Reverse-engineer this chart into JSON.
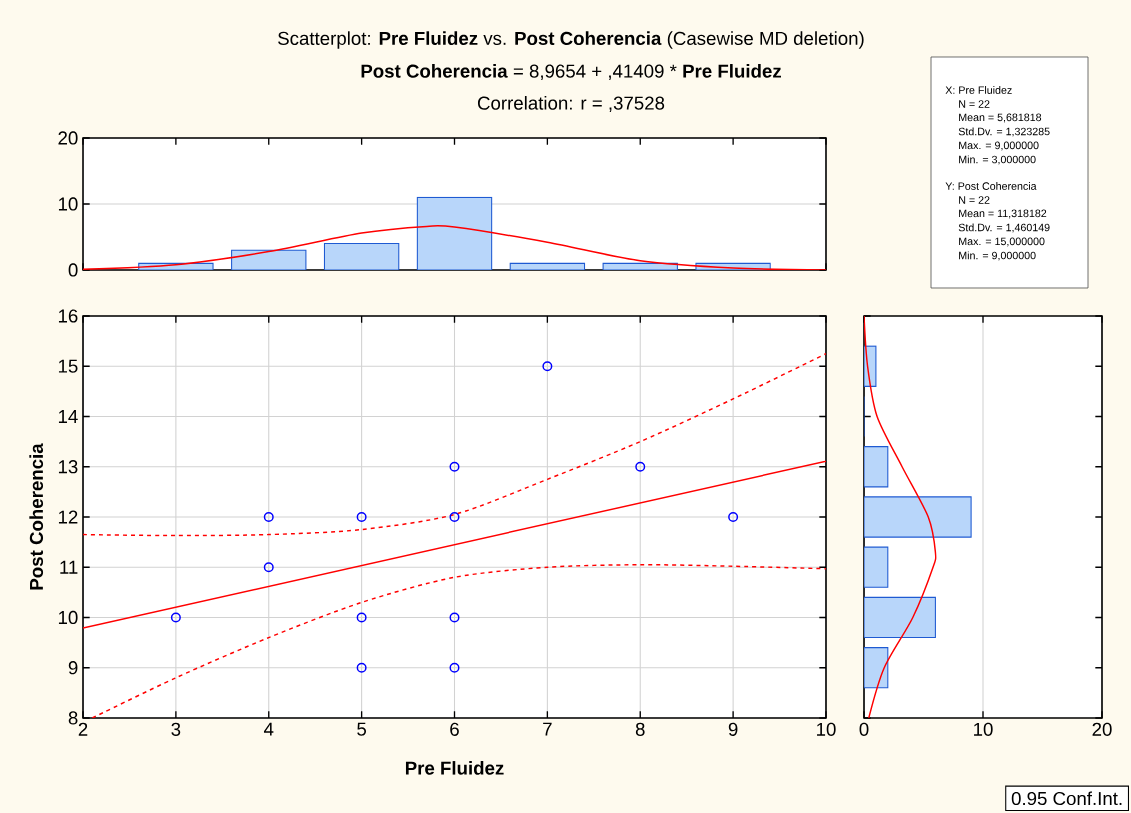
{
  "chart_data": [
    {
      "type": "scatter",
      "xlabel": "Pre Fluidez",
      "ylabel": "Post Coherencia",
      "annotations": [
        "0.95 Conf.Int."
      ],
      "xlim": [
        2,
        10
      ],
      "ylim": [
        8,
        16
      ],
      "xticks": [
        2,
        3,
        4,
        5,
        6,
        7,
        8,
        9,
        10
      ],
      "yticks": [
        8,
        9,
        10,
        11,
        12,
        13,
        14,
        15,
        16
      ],
      "grid": true,
      "marker": "circle",
      "series": [
        {
          "type": "scatter",
          "color": "#0000ff",
          "x": [
            3,
            4,
            4,
            5,
            5,
            5,
            6,
            6,
            6,
            6,
            7,
            8,
            9
          ],
          "values": [
            10,
            12,
            11,
            12,
            10,
            9,
            13,
            12,
            10,
            9,
            15,
            13,
            12
          ]
        },
        {
          "type": "line",
          "marker": "none",
          "color": "#ff0000",
          "line_style": "solid",
          "x": [
            2,
            10
          ],
          "values": [
            9.79,
            13.11
          ]
        },
        {
          "type": "line",
          "marker": "none",
          "color": "#ff0000",
          "line_style": "dashed",
          "x": [
            2,
            3,
            4,
            5,
            6,
            7,
            8,
            9,
            10
          ],
          "values": [
            11.65,
            11.63,
            11.65,
            11.75,
            12.05,
            12.75,
            13.5,
            14.35,
            15.25
          ]
        },
        {
          "type": "line",
          "marker": "none",
          "color": "#ff0000",
          "line_style": "dashed",
          "x": [
            2.1,
            3,
            4,
            5,
            6,
            7,
            8,
            9,
            10
          ],
          "values": [
            8.0,
            8.8,
            9.6,
            10.3,
            10.8,
            11.0,
            11.05,
            11.02,
            10.97
          ]
        }
      ]
    },
    {
      "type": "histogram",
      "title": "Scatterplot: **Pre Fluidez** vs. **Post Coherencia** (Casewise MD deletion)",
      "subtitle": "**Post Coherencia** = 8,9654 + ,41409 * **Pre Fluidez**",
      "annotations": [
        "Correlation: r = ,37528"
      ],
      "xlim": [
        2,
        10
      ],
      "ylim": [
        0,
        20
      ],
      "xticks": [
        2,
        3,
        4,
        5,
        6,
        7,
        8,
        9,
        10
      ],
      "yticks": [
        0,
        10,
        20
      ],
      "grid": "y",
      "tick_labels": "y",
      "series": [
        {
          "type": "histogram",
          "color": "#b8d6fa",
          "bins": [
            2.5,
            3.5,
            4.5,
            5.5,
            6.5,
            7.5,
            8.5,
            9.5
          ],
          "values": [
            1,
            3,
            4,
            11,
            1,
            1,
            1
          ]
        },
        {
          "type": "line",
          "color": "#ff0000",
          "x": [
            2,
            3,
            4,
            5,
            5.7,
            6,
            7,
            8,
            9,
            10
          ],
          "values": [
            0.1,
            0.8,
            2.8,
            5.6,
            6.6,
            6.5,
            4.2,
            1.4,
            0.3,
            0
          ]
        }
      ]
    },
    {
      "type": "histogram",
      "orientation": "horizontal",
      "xlim": [
        0,
        20
      ],
      "ylim": [
        8,
        16
      ],
      "xticks": [
        0,
        10,
        20
      ],
      "yticks": [
        8,
        9,
        10,
        11,
        12,
        13,
        14,
        15,
        16
      ],
      "grid": "x",
      "tick_labels": "x",
      "series": [
        {
          "type": "histogram",
          "color": "#b8d6fa",
          "bins": [
            8.5,
            9.5,
            10.5,
            11.5,
            12.5,
            13.5,
            14.5,
            15.5
          ],
          "values": [
            2,
            6,
            2,
            9,
            2,
            0,
            1
          ]
        },
        {
          "type": "line",
          "color": "#ff0000",
          "x": [
            8,
            9,
            10,
            11,
            11.3,
            12,
            13,
            14,
            15,
            16
          ],
          "values": [
            0.4,
            1.7,
            4.1,
            5.8,
            6.0,
            5.4,
            3.2,
            1.1,
            0.3,
            0
          ]
        }
      ]
    },
    {
      "type": "other",
      "annotations": [
        "X:  Pre Fluidez",
        "N = 22",
        "Mean = 5,681818",
        "Std.Dv. = 1,323285",
        "Max. = 9,000000",
        "Min. = 3,000000",
        "Y:  Post Coherencia",
        "N = 22",
        "Mean = 11,318182",
        "Std.Dv. = 1,460149",
        "Max. = 15,000000",
        "Min. = 9,000000"
      ]
    }
  ]
}
